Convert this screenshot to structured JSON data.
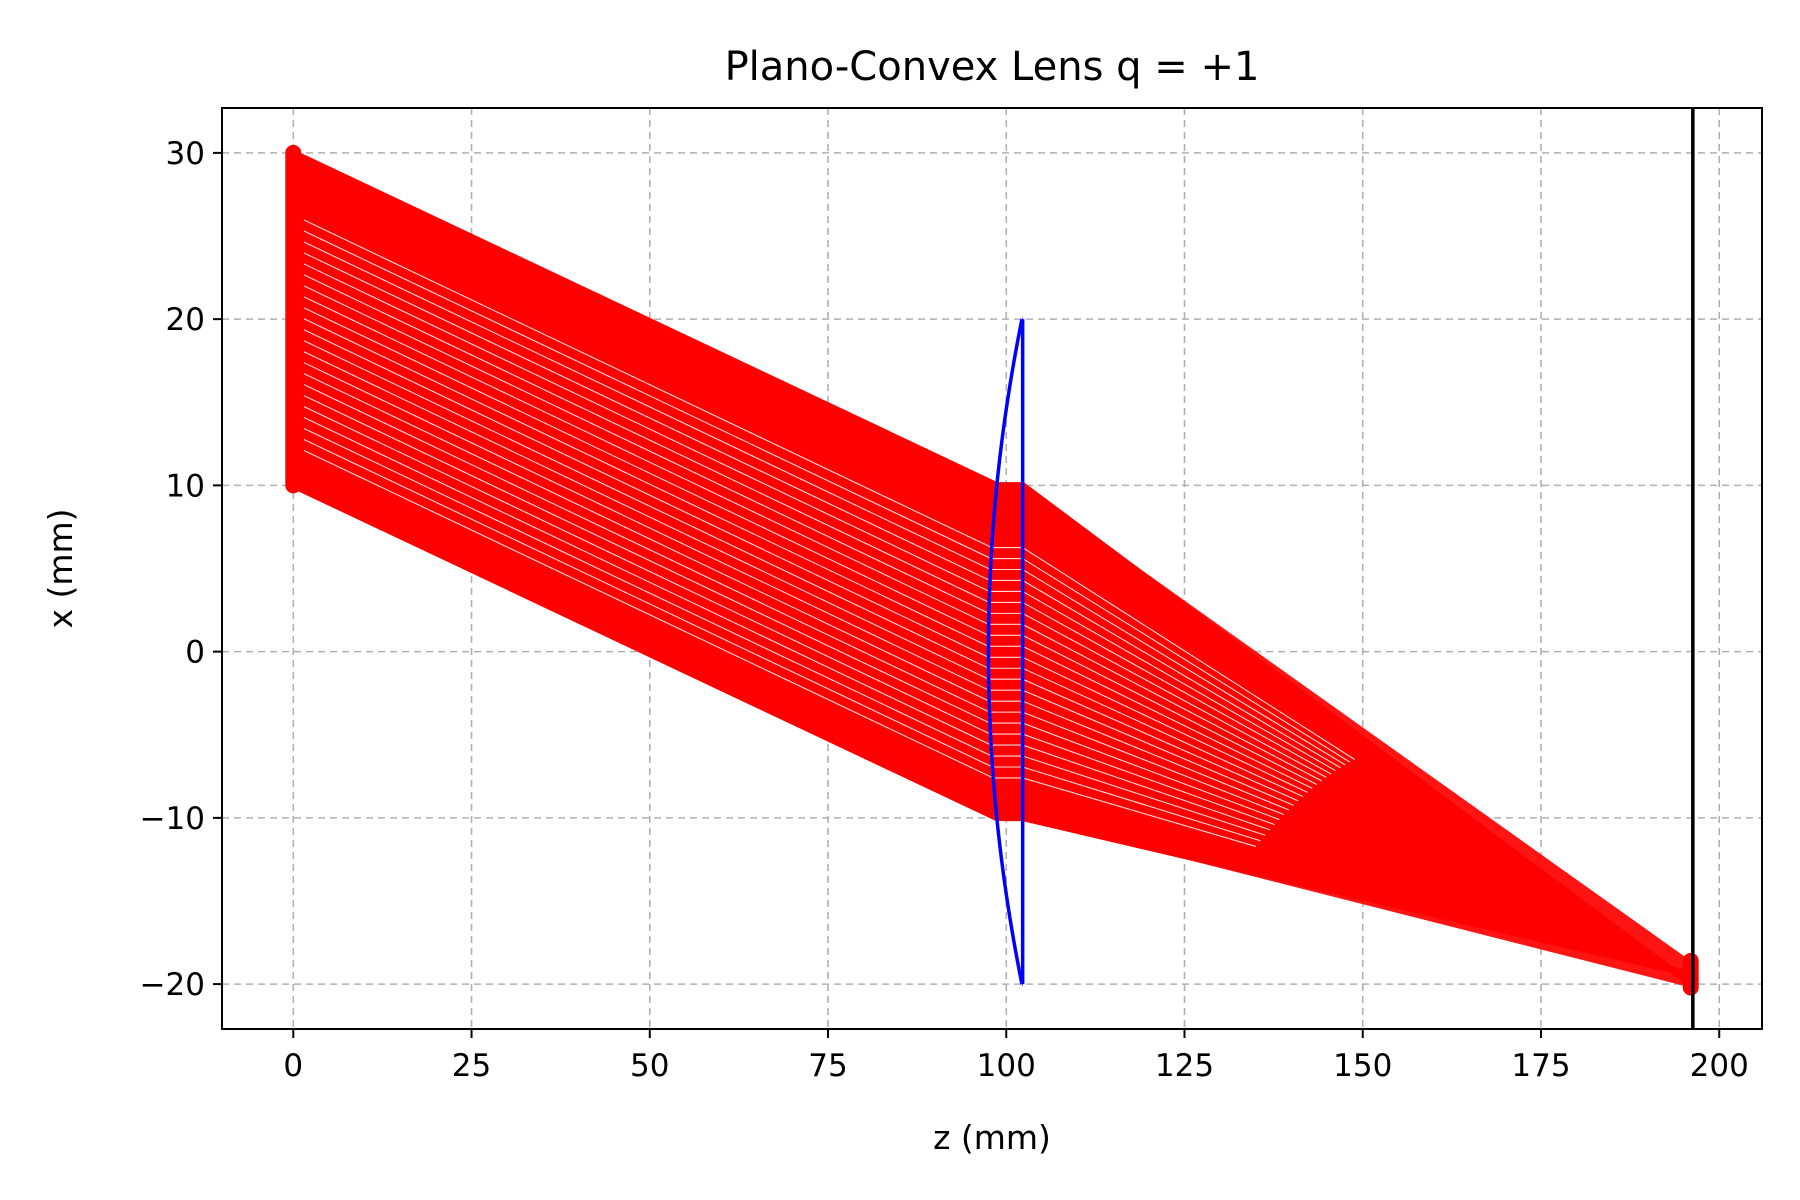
{
  "chart_data": {
    "type": "line",
    "title": "Plano-Convex Lens q = +1",
    "xlabel": "z (mm)",
    "ylabel": "x (mm)",
    "xlim": [
      -10,
      206
    ],
    "ylim": [
      -22.7,
      32.7
    ],
    "xticks": [
      0,
      25,
      50,
      75,
      100,
      125,
      150,
      175,
      200
    ],
    "yticks": [
      -20,
      -10,
      0,
      10,
      20,
      30
    ],
    "xtick_labels": [
      "0",
      "25",
      "50",
      "75",
      "100",
      "125",
      "150",
      "175",
      "200"
    ],
    "ytick_labels": [
      "−20",
      "−10",
      "0",
      "10",
      "20",
      "30"
    ],
    "grid": true,
    "colors": {
      "rays": "#ff0000",
      "lens": "#0000ff",
      "screen": "#000000",
      "grid": "#b0b0b0"
    },
    "rays": {
      "source_z": 0,
      "source_x_range": [
        10,
        30
      ],
      "lens_front_x_range": [
        -10,
        10
      ],
      "image_z": 196,
      "image_x_range": [
        -20.2,
        -18.6
      ],
      "count": 61
    },
    "lens": {
      "aperture_x": [
        -20,
        20
      ],
      "front_vertex_z": 97.5,
      "edge_z": 102.2,
      "back_plane_z": 102.3
    },
    "screen_z": 196.3
  }
}
